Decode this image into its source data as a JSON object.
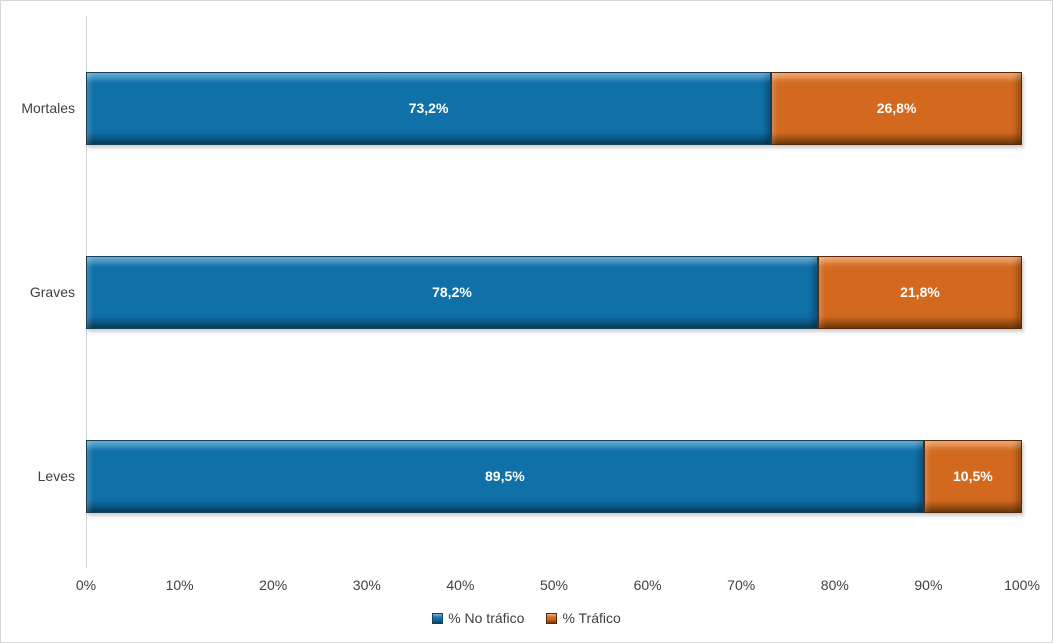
{
  "chart_data": {
    "type": "bar",
    "orientation": "horizontal",
    "stacked": true,
    "title": "",
    "categories": [
      "Mortales",
      "Graves",
      "Leves"
    ],
    "series": [
      {
        "name": "% No tráfico",
        "values": [
          73.2,
          78.2,
          89.5
        ],
        "labels": [
          "73,2%",
          "78,2%",
          "89,5%"
        ],
        "color": "#1070A8",
        "color_light": "#3D97C9",
        "color_dark": "#0A5580",
        "border_color": "#173F58"
      },
      {
        "name": "% Tráfico",
        "values": [
          26.8,
          21.8,
          10.5
        ],
        "labels": [
          "26,8%",
          "21,8%",
          "10,5%"
        ],
        "color": "#D2691F",
        "color_light": "#EE9147",
        "color_dark": "#9C4E10",
        "border_color": "#55290A"
      }
    ],
    "x_axis": {
      "min": 0,
      "max": 100,
      "tick_labels": [
        "0%",
        "10%",
        "20%",
        "30%",
        "40%",
        "50%",
        "60%",
        "70%",
        "80%",
        "90%",
        "100%"
      ]
    },
    "legend": {
      "position": "bottom",
      "items": [
        "% No tráfico",
        "% Tráfico"
      ]
    },
    "grid": false,
    "axis_line_color": "#D2D2D2",
    "value_label_color": "#FFFFFF"
  }
}
